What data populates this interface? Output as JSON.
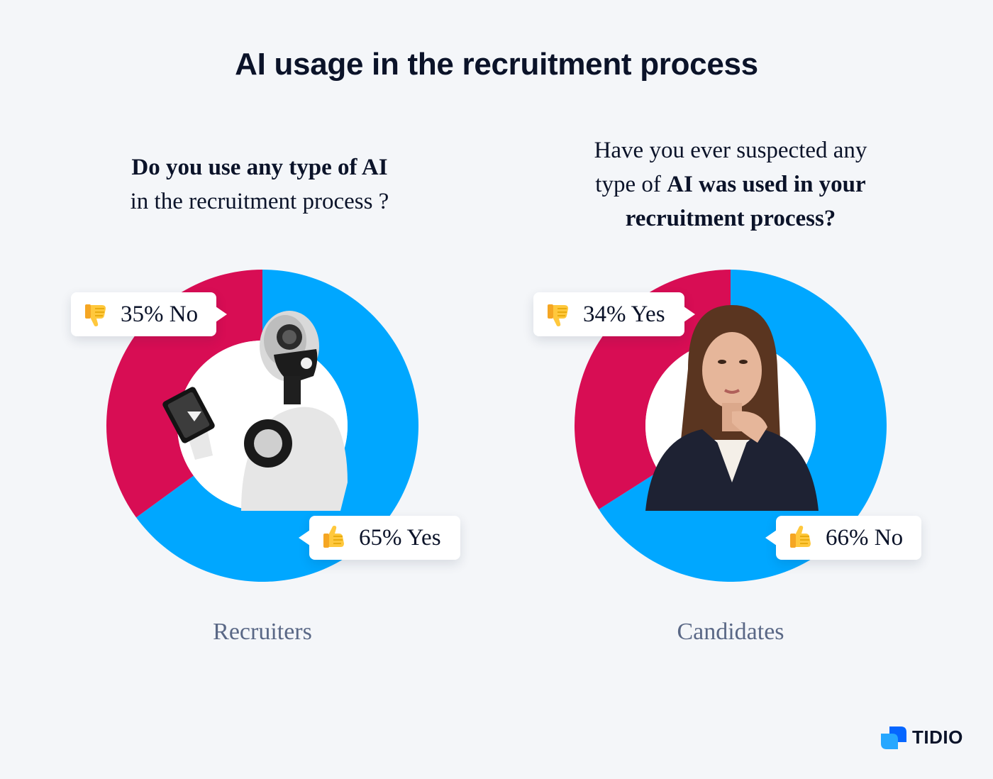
{
  "title": "AI usage in the recruitment process",
  "colors": {
    "yes_blue": "#00a7ff",
    "no_red": "#d80d54",
    "background": "#f4f6f9",
    "caption": "#5a6886"
  },
  "left": {
    "question_line1": "Do you use any type of AI",
    "question_line2": "in the recruitment process ?",
    "caption": "Recruiters",
    "image": "robot-with-tablet-image",
    "bubbles": [
      {
        "icon": "thumbs-down-icon",
        "text": "35% No"
      },
      {
        "icon": "thumbs-up-icon",
        "text": "65% Yes"
      }
    ]
  },
  "right": {
    "question_line1": "Have you ever suspected any",
    "question_line2_plain": "type of ",
    "question_line2_bold": "AI was used in your",
    "question_line3": "recruitment process?",
    "caption": "Candidates",
    "image": "thinking-woman-image",
    "bubbles": [
      {
        "icon": "thumbs-down-icon",
        "text": "34% Yes"
      },
      {
        "icon": "thumbs-up-icon",
        "text": "66% No"
      }
    ]
  },
  "chart_data": [
    {
      "type": "pie",
      "title": "Do you use any type of AI in the recruitment process ?",
      "caption": "Recruiters",
      "slices": [
        {
          "label": "Yes",
          "value": 65,
          "color": "#00a7ff"
        },
        {
          "label": "No",
          "value": 35,
          "color": "#d80d54"
        }
      ]
    },
    {
      "type": "pie",
      "title": "Have you ever suspected any type of AI was used in your recruitment process?",
      "caption": "Candidates",
      "slices": [
        {
          "label": "No",
          "value": 66,
          "color": "#00a7ff"
        },
        {
          "label": "Yes",
          "value": 34,
          "color": "#d80d54"
        }
      ]
    }
  ],
  "brand": {
    "logo_text": "TIDIO"
  }
}
